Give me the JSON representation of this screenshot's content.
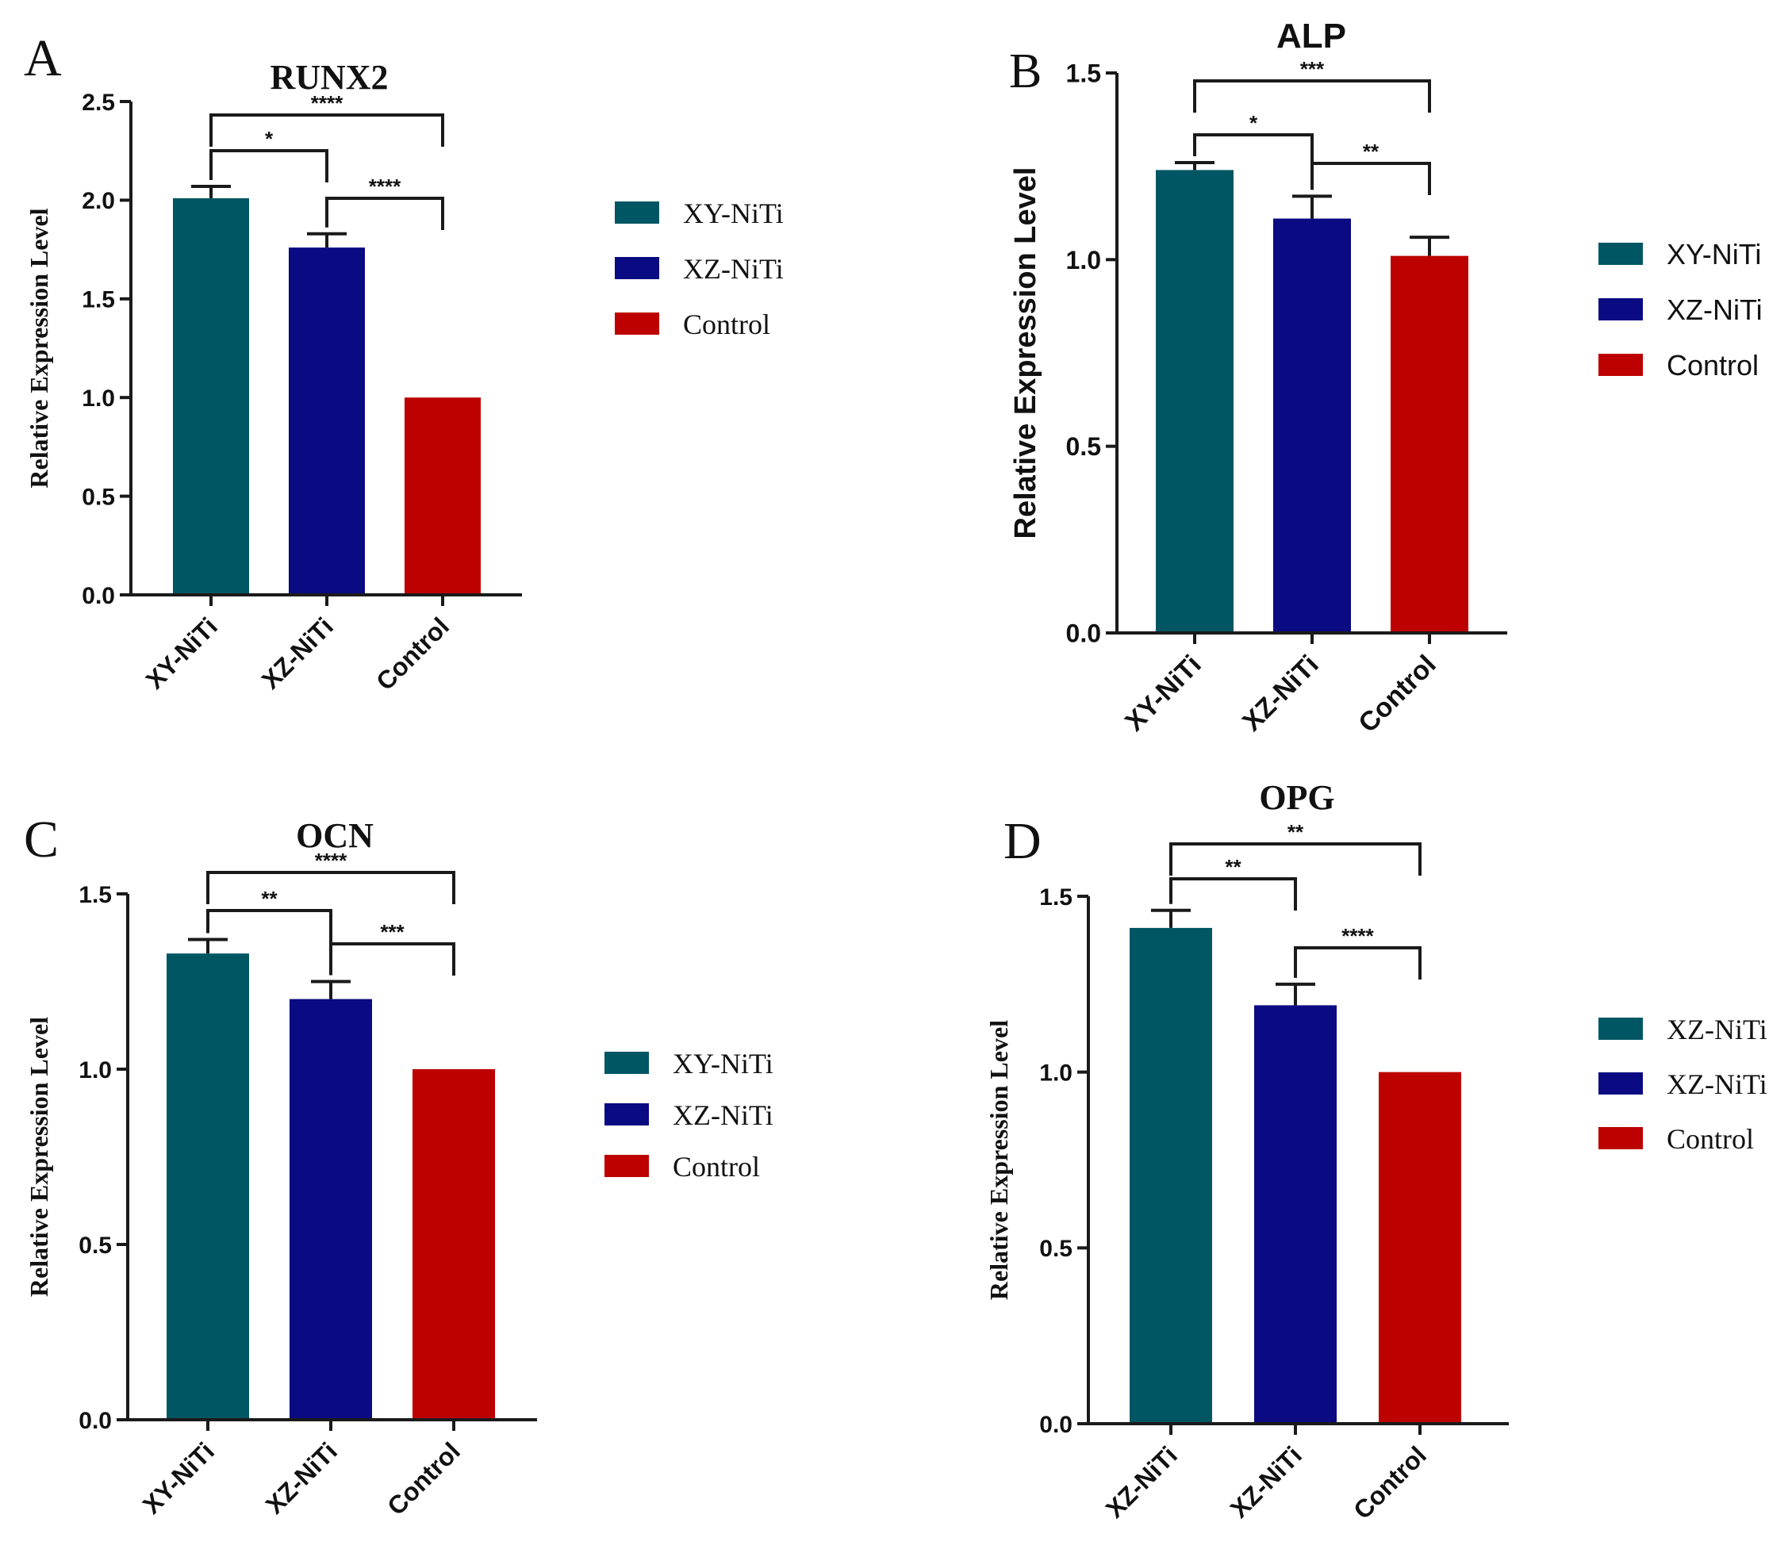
{
  "figure": {
    "panels": [
      {
        "id": "A",
        "letter": "A",
        "font": "serif"
      },
      {
        "id": "B",
        "letter": "B",
        "font": "sans"
      },
      {
        "id": "C",
        "letter": "C",
        "font": "serif"
      },
      {
        "id": "D",
        "letter": "D",
        "font": "serif"
      }
    ]
  },
  "colors": {
    "teal": "#005663",
    "navy": "#0a0a82",
    "red": "#bd0000",
    "axis": "#1a1a1a"
  },
  "chart_data": [
    {
      "panel": "A",
      "type": "bar",
      "title": "RUNX2",
      "ylabel": "Relative Expression Level",
      "xlabel": "",
      "ylim": [
        0,
        2.5
      ],
      "yticks": [
        "0.0",
        "0.5",
        "1.0",
        "1.5",
        "2.0",
        "2.5"
      ],
      "categories": [
        "XY-NiTi",
        "XZ-NiTi",
        "Control"
      ],
      "values": [
        2.01,
        1.76,
        1.0
      ],
      "errors": [
        0.06,
        0.07,
        0
      ],
      "bar_colors": [
        "#005663",
        "#0a0a82",
        "#bd0000"
      ],
      "legend": [
        "XY-NiTi",
        "XZ-NiTi",
        "Control"
      ],
      "legend_position": "right",
      "significance": [
        {
          "from": 0,
          "to": 2,
          "label": "****"
        },
        {
          "from": 0,
          "to": 1,
          "label": "*"
        },
        {
          "from": 1,
          "to": 2,
          "label": "****"
        }
      ]
    },
    {
      "panel": "B",
      "type": "bar",
      "title": "ALP",
      "ylabel": "Relative Expression Level",
      "xlabel": "",
      "ylim": [
        0,
        1.5
      ],
      "yticks": [
        "0.0",
        "0.5",
        "1.0",
        "1.5"
      ],
      "categories": [
        "XY-NiTi",
        "XZ-NiTi",
        "Control"
      ],
      "values": [
        1.24,
        1.11,
        1.01
      ],
      "errors": [
        0.02,
        0.06,
        0.05
      ],
      "bar_colors": [
        "#005663",
        "#0a0a82",
        "#bd0000"
      ],
      "legend": [
        "XY-NiTi",
        "XZ-NiTi",
        "Control"
      ],
      "legend_position": "right",
      "significance": [
        {
          "from": 0,
          "to": 2,
          "label": "***"
        },
        {
          "from": 0,
          "to": 1,
          "label": "*"
        },
        {
          "from": 1,
          "to": 2,
          "label": "**"
        }
      ]
    },
    {
      "panel": "C",
      "type": "bar",
      "title": "OCN",
      "ylabel": "Relative Expression Level",
      "xlabel": "",
      "ylim": [
        0,
        1.5
      ],
      "yticks": [
        "0.0",
        "0.5",
        "1.0",
        "1.5"
      ],
      "categories": [
        "XY-NiTi",
        "XZ-NiTi",
        "Control"
      ],
      "values": [
        1.33,
        1.2,
        1.0
      ],
      "errors": [
        0.04,
        0.05,
        0
      ],
      "bar_colors": [
        "#005663",
        "#0a0a82",
        "#bd0000"
      ],
      "legend": [
        "XY-NiTi",
        "XZ-NiTi",
        "Control"
      ],
      "legend_position": "right",
      "significance": [
        {
          "from": 0,
          "to": 2,
          "label": "****"
        },
        {
          "from": 0,
          "to": 1,
          "label": "**"
        },
        {
          "from": 1,
          "to": 2,
          "label": "***"
        }
      ]
    },
    {
      "panel": "D",
      "type": "bar",
      "title": "OPG",
      "ylabel": "Relative Expression Level",
      "xlabel": "",
      "ylim": [
        0,
        1.5
      ],
      "yticks": [
        "0.0",
        "0.5",
        "1.0",
        "1.5"
      ],
      "categories": [
        "XZ-NiTi",
        "XZ-NiTi",
        "Control"
      ],
      "values": [
        1.41,
        1.19,
        1.0
      ],
      "errors": [
        0.05,
        0.06,
        0
      ],
      "bar_colors": [
        "#005663",
        "#0a0a82",
        "#bd0000"
      ],
      "legend": [
        "XZ-NiTi",
        "XZ-NiTi",
        "Control"
      ],
      "legend_position": "right",
      "significance": [
        {
          "from": 0,
          "to": 2,
          "label": "**"
        },
        {
          "from": 0,
          "to": 1,
          "label": "**"
        },
        {
          "from": 1,
          "to": 2,
          "label": "****"
        }
      ]
    }
  ]
}
